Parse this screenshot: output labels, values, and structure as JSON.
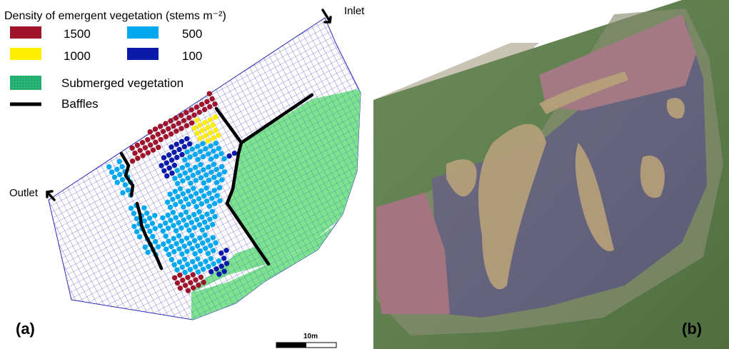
{
  "legend": {
    "title": "Density of emergent vegetation (stems m⁻²)",
    "items": [
      {
        "label": "1500",
        "color": "#a0142b"
      },
      {
        "label": "500",
        "color": "#00a8f0"
      },
      {
        "label": "1000",
        "color": "#ffee00"
      },
      {
        "label": "100",
        "color": "#0b1aa8"
      }
    ],
    "submerged": {
      "label": "Submerged vegetation",
      "color": "#2ab87a"
    },
    "baffles": {
      "label": "Baffles",
      "color": "#000000"
    }
  },
  "labels": {
    "inlet": "Inlet",
    "outlet": "Outlet",
    "panel_a": "(a)",
    "panel_b": "(b)",
    "scale": "10m"
  },
  "colors": {
    "grid": "#2b2bb8",
    "submerged_fill": "#7fe28f",
    "grid_background": "#ffffff"
  }
}
